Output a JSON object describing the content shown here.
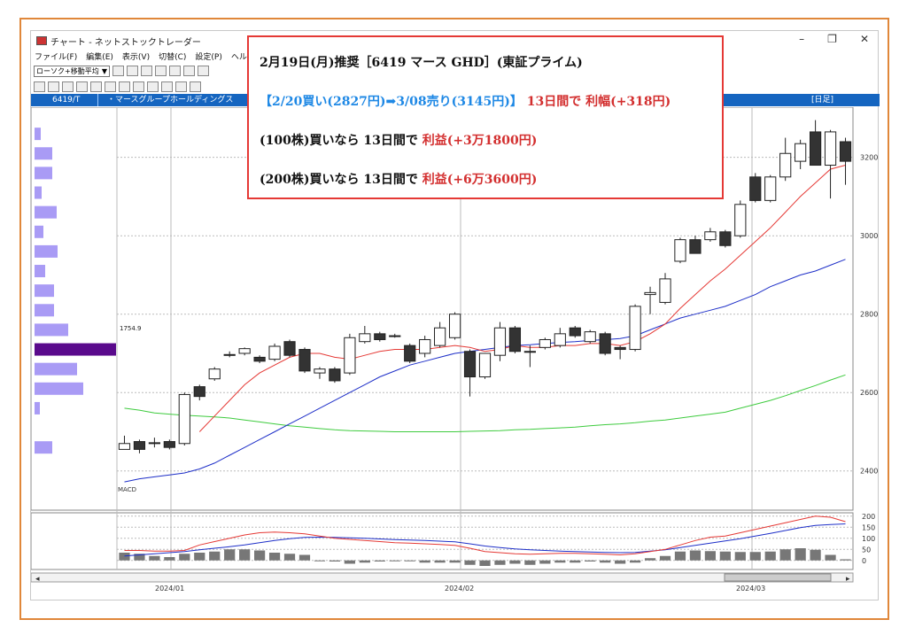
{
  "window": {
    "title": "チャート - ネットストックトレーダー",
    "controls": [
      "–",
      "❐",
      "✕"
    ]
  },
  "menu": [
    "ファイル(F)",
    "編集(E)",
    "表示(V)",
    "切替(C)",
    "設定(P)",
    "ヘルプ(H)"
  ],
  "toolbar": {
    "chart_type_select": "ローソク+移動平均",
    "select_arrow": "▼"
  },
  "header": {
    "code": "6419/T",
    "company": "・マースグループホールディングス",
    "period": "[日足]"
  },
  "overlay": {
    "line1": "2月19日(月)推奨［6419 マース GHD］(東証プライム)",
    "line2_blue": "【2/20買い(2827円)➡3/08売り(3145円)】",
    "line2_red": "13日間で 利幅(+318円)",
    "line3_black": "(100株)買いなら 13日間で ",
    "line3_red": "利益(+3万1800円)",
    "line4_black": "(200株)買いなら 13日間で ",
    "line4_red": "利益(+6万3600円)"
  },
  "volume_profile_label": "1754.9",
  "macd_label": "MACD",
  "scroll": {
    "left_arrow": "◂",
    "right_arrow": "▸"
  },
  "colors": {
    "up": "#ffffff",
    "down": "#333333",
    "ma_short": "#e53935",
    "ma_mid": "#1e2fc8",
    "ma_long": "#3ecb3e",
    "profile": "#a99bf5",
    "profile_peak": "#5a0a8c",
    "accent": "#1565c0"
  },
  "chart_data": [
    {
      "type": "candlestick",
      "title": "",
      "x_ticks": [
        "2024/01",
        "2024/02",
        "2024/03"
      ],
      "y_ticks": [
        2400,
        2600,
        2800,
        3000,
        3200
      ],
      "ylim": [
        2300,
        3310
      ],
      "candles": [
        {
          "o": 2455,
          "h": 2490,
          "l": 2460,
          "c": 2470
        },
        {
          "o": 2475,
          "h": 2480,
          "l": 2445,
          "c": 2455
        },
        {
          "o": 2470,
          "h": 2485,
          "l": 2460,
          "c": 2472
        },
        {
          "o": 2475,
          "h": 2480,
          "l": 2455,
          "c": 2460
        },
        {
          "o": 2470,
          "h": 2600,
          "l": 2465,
          "c": 2595
        },
        {
          "o": 2615,
          "h": 2620,
          "l": 2580,
          "c": 2590
        },
        {
          "o": 2635,
          "h": 2665,
          "l": 2630,
          "c": 2660
        },
        {
          "o": 2695,
          "h": 2705,
          "l": 2690,
          "c": 2697
        },
        {
          "o": 2700,
          "h": 2715,
          "l": 2695,
          "c": 2712
        },
        {
          "o": 2690,
          "h": 2695,
          "l": 2675,
          "c": 2680
        },
        {
          "o": 2685,
          "h": 2725,
          "l": 2680,
          "c": 2718
        },
        {
          "o": 2730,
          "h": 2735,
          "l": 2690,
          "c": 2695
        },
        {
          "o": 2710,
          "h": 2715,
          "l": 2650,
          "c": 2655
        },
        {
          "o": 2650,
          "h": 2665,
          "l": 2635,
          "c": 2660
        },
        {
          "o": 2660,
          "h": 2665,
          "l": 2625,
          "c": 2630
        },
        {
          "o": 2650,
          "h": 2750,
          "l": 2645,
          "c": 2740
        },
        {
          "o": 2730,
          "h": 2770,
          "l": 2725,
          "c": 2750
        },
        {
          "o": 2750,
          "h": 2755,
          "l": 2730,
          "c": 2735
        },
        {
          "o": 2745,
          "h": 2750,
          "l": 2740,
          "c": 2745
        },
        {
          "o": 2720,
          "h": 2725,
          "l": 2675,
          "c": 2680
        },
        {
          "o": 2700,
          "h": 2745,
          "l": 2690,
          "c": 2735
        },
        {
          "o": 2720,
          "h": 2780,
          "l": 2715,
          "c": 2765
        },
        {
          "o": 2740,
          "h": 2805,
          "l": 2735,
          "c": 2800
        },
        {
          "o": 2705,
          "h": 2710,
          "l": 2590,
          "c": 2640
        },
        {
          "o": 2640,
          "h": 2700,
          "l": 2635,
          "c": 2700
        },
        {
          "o": 2695,
          "h": 2780,
          "l": 2680,
          "c": 2765
        },
        {
          "o": 2765,
          "h": 2770,
          "l": 2700,
          "c": 2705
        },
        {
          "o": 2705,
          "h": 2720,
          "l": 2665,
          "c": 2705
        },
        {
          "o": 2715,
          "h": 2740,
          "l": 2710,
          "c": 2735
        },
        {
          "o": 2720,
          "h": 2765,
          "l": 2715,
          "c": 2750
        },
        {
          "o": 2765,
          "h": 2770,
          "l": 2740,
          "c": 2745
        },
        {
          "o": 2730,
          "h": 2760,
          "l": 2725,
          "c": 2755
        },
        {
          "o": 2750,
          "h": 2755,
          "l": 2695,
          "c": 2700
        },
        {
          "o": 2715,
          "h": 2720,
          "l": 2685,
          "c": 2710
        },
        {
          "o": 2710,
          "h": 2825,
          "l": 2705,
          "c": 2820
        },
        {
          "o": 2850,
          "h": 2870,
          "l": 2800,
          "c": 2855
        },
        {
          "o": 2830,
          "h": 2905,
          "l": 2825,
          "c": 2890
        },
        {
          "o": 2935,
          "h": 2995,
          "l": 2930,
          "c": 2990
        },
        {
          "o": 2990,
          "h": 3000,
          "l": 2955,
          "c": 2955
        },
        {
          "o": 2990,
          "h": 3020,
          "l": 2985,
          "c": 3010
        },
        {
          "o": 3010,
          "h": 3015,
          "l": 2970,
          "c": 2975
        },
        {
          "o": 3000,
          "h": 3090,
          "l": 2995,
          "c": 3080
        },
        {
          "o": 3150,
          "h": 3160,
          "l": 3085,
          "c": 3090
        },
        {
          "o": 3090,
          "h": 3155,
          "l": 3085,
          "c": 3150
        },
        {
          "o": 3150,
          "h": 3250,
          "l": 3140,
          "c": 3210
        },
        {
          "o": 3190,
          "h": 3245,
          "l": 3170,
          "c": 3235
        },
        {
          "o": 3265,
          "h": 3295,
          "l": 3180,
          "c": 3180
        },
        {
          "o": 3180,
          "h": 3270,
          "l": 3095,
          "c": 3265
        },
        {
          "o": 3240,
          "h": 3250,
          "l": 3130,
          "c": 3190
        }
      ],
      "ma_short": [
        null,
        null,
        null,
        null,
        null,
        2500,
        2540,
        2580,
        2620,
        2650,
        2670,
        2690,
        2700,
        2700,
        2690,
        2685,
        2695,
        2705,
        2710,
        2710,
        2710,
        2715,
        2720,
        2715,
        2705,
        2710,
        2720,
        2715,
        2715,
        2720,
        2720,
        2725,
        2725,
        2720,
        2730,
        2750,
        2775,
        2815,
        2850,
        2885,
        2915,
        2950,
        2985,
        3020,
        3060,
        3100,
        3135,
        3170,
        3180
      ],
      "ma_mid": [
        2372,
        2380,
        2385,
        2390,
        2395,
        2405,
        2420,
        2440,
        2460,
        2480,
        2500,
        2520,
        2540,
        2560,
        2580,
        2600,
        2620,
        2640,
        2655,
        2670,
        2680,
        2690,
        2700,
        2705,
        2710,
        2715,
        2720,
        2722,
        2725,
        2728,
        2730,
        2733,
        2735,
        2738,
        2745,
        2760,
        2775,
        2790,
        2800,
        2810,
        2820,
        2835,
        2850,
        2870,
        2885,
        2900,
        2910,
        2925,
        2940
      ],
      "ma_long": [
        2560,
        2555,
        2548,
        2545,
        2542,
        2540,
        2538,
        2535,
        2530,
        2525,
        2520,
        2515,
        2512,
        2508,
        2505,
        2503,
        2502,
        2501,
        2500,
        2500,
        2500,
        2500,
        2500,
        2501,
        2502,
        2503,
        2505,
        2506,
        2508,
        2510,
        2512,
        2515,
        2518,
        2520,
        2523,
        2527,
        2530,
        2535,
        2540,
        2545,
        2550,
        2560,
        2570,
        2580,
        2592,
        2605,
        2618,
        2632,
        2645
      ],
      "volume_profile": [
        {
          "price": 3260,
          "len": 7
        },
        {
          "price": 3210,
          "len": 20
        },
        {
          "price": 3160,
          "len": 20
        },
        {
          "price": 3110,
          "len": 8
        },
        {
          "price": 3060,
          "len": 25
        },
        {
          "price": 3010,
          "len": 10
        },
        {
          "price": 2960,
          "len": 26
        },
        {
          "price": 2910,
          "len": 12
        },
        {
          "price": 2860,
          "len": 22
        },
        {
          "price": 2810,
          "len": 22
        },
        {
          "price": 2760,
          "len": 38
        },
        {
          "price": 2710,
          "len": 92
        },
        {
          "price": 2660,
          "len": 48
        },
        {
          "price": 2610,
          "len": 55
        },
        {
          "price": 2560,
          "len": 6
        },
        {
          "price": 2460,
          "len": 20
        }
      ]
    },
    {
      "type": "macd",
      "title": "MACD",
      "y_ticks": [
        0,
        50,
        100,
        150,
        200
      ],
      "ylim": [
        -25,
        215
      ],
      "macd": [
        45,
        45,
        42,
        42,
        45,
        70,
        85,
        100,
        115,
        125,
        128,
        125,
        120,
        110,
        100,
        95,
        90,
        85,
        80,
        78,
        75,
        72,
        68,
        55,
        40,
        35,
        30,
        28,
        30,
        32,
        32,
        30,
        28,
        25,
        30,
        40,
        50,
        70,
        90,
        105,
        110,
        125,
        140,
        155,
        170,
        185,
        200,
        195,
        175
      ],
      "signal": [
        20,
        25,
        30,
        35,
        40,
        48,
        55,
        62,
        70,
        80,
        90,
        98,
        104,
        105,
        104,
        102,
        100,
        97,
        94,
        92,
        90,
        87,
        84,
        75,
        65,
        58,
        52,
        48,
        45,
        42,
        40,
        38,
        36,
        35,
        36,
        42,
        48,
        58,
        68,
        78,
        88,
        98,
        110,
        122,
        135,
        148,
        158,
        162,
        165
      ],
      "hist": [
        35,
        30,
        20,
        15,
        30,
        35,
        40,
        50,
        50,
        45,
        35,
        30,
        25,
        0,
        -5,
        -15,
        -10,
        -5,
        0,
        0,
        -10,
        -10,
        -10,
        -20,
        -25,
        -20,
        -15,
        -20,
        -15,
        -10,
        -10,
        -5,
        -10,
        -15,
        -10,
        10,
        20,
        40,
        45,
        42,
        40,
        38,
        38,
        40,
        50,
        55,
        48,
        25,
        5
      ]
    }
  ]
}
